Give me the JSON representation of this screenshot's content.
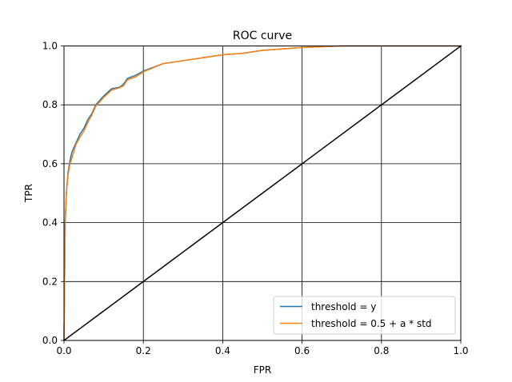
{
  "chart_data": {
    "type": "line",
    "title": "ROC curve",
    "xlabel": "FPR",
    "ylabel": "TPR",
    "xlim": [
      0,
      1
    ],
    "ylim": [
      0,
      1
    ],
    "xticks": [
      0,
      0.2,
      0.4,
      0.6,
      0.8,
      1
    ],
    "xtick_labels": [
      "0.0",
      "0.2",
      "0.4",
      "0.6",
      "0.8",
      "1.0"
    ],
    "yticks": [
      0,
      0.2,
      0.4,
      0.6,
      0.8,
      1
    ],
    "ytick_labels": [
      "0.0",
      "0.2",
      "0.4",
      "0.6",
      "0.8",
      "1.0"
    ],
    "grid": true,
    "legend_position": "lower-right",
    "series": [
      {
        "name": "threshold = y",
        "color": "#1f77b4",
        "x": [
          0,
          0.003,
          0.006,
          0.01,
          0.015,
          0.02,
          0.03,
          0.04,
          0.05,
          0.06,
          0.07,
          0.08,
          0.09,
          0.1,
          0.12,
          0.14,
          0.15,
          0.16,
          0.18,
          0.2,
          0.25,
          0.3,
          0.35,
          0.4,
          0.45,
          0.5,
          0.55,
          0.6,
          0.7,
          0.8,
          0.9,
          1.0
        ],
        "y": [
          0,
          0.4,
          0.5,
          0.57,
          0.61,
          0.64,
          0.67,
          0.7,
          0.72,
          0.75,
          0.77,
          0.8,
          0.815,
          0.83,
          0.855,
          0.86,
          0.87,
          0.89,
          0.9,
          0.915,
          0.94,
          0.95,
          0.96,
          0.97,
          0.975,
          0.985,
          0.99,
          0.995,
          1.0,
          1.0,
          1.0,
          1.0
        ]
      },
      {
        "name": "threshold = 0.5 + a * std",
        "color": "#ff7f0e",
        "x": [
          0,
          0.003,
          0.006,
          0.01,
          0.015,
          0.02,
          0.03,
          0.04,
          0.05,
          0.06,
          0.07,
          0.08,
          0.09,
          0.1,
          0.12,
          0.14,
          0.15,
          0.16,
          0.18,
          0.2,
          0.25,
          0.3,
          0.35,
          0.4,
          0.45,
          0.5,
          0.55,
          0.6,
          0.7,
          0.8,
          0.9,
          1.0
        ],
        "y": [
          0,
          0.4,
          0.5,
          0.56,
          0.6,
          0.62,
          0.665,
          0.69,
          0.71,
          0.74,
          0.765,
          0.795,
          0.81,
          0.825,
          0.85,
          0.858,
          0.865,
          0.885,
          0.895,
          0.912,
          0.94,
          0.95,
          0.96,
          0.97,
          0.975,
          0.985,
          0.99,
          0.995,
          1.0,
          1.0,
          1.0,
          1.0
        ]
      },
      {
        "color": "#000000",
        "x": [
          0,
          1
        ],
        "y": [
          0,
          1
        ]
      }
    ]
  }
}
